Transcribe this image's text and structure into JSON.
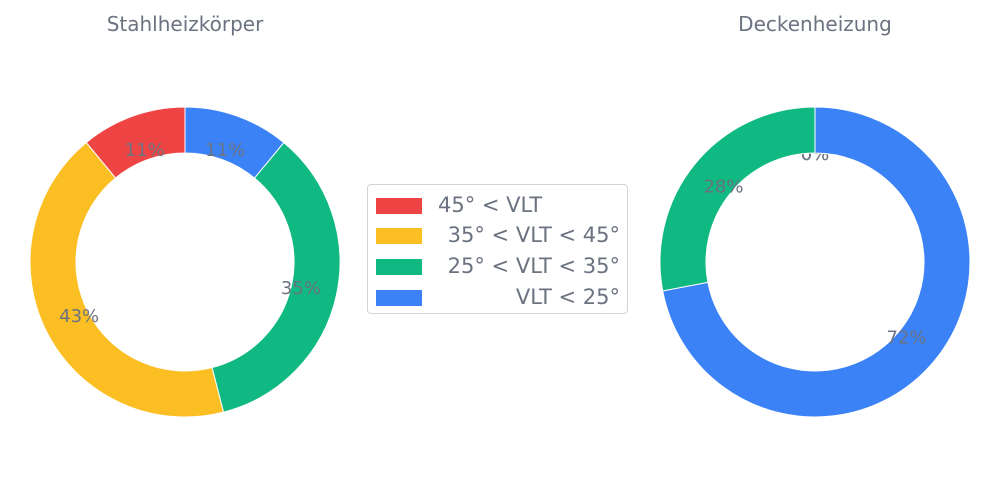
{
  "chart_data": [
    {
      "type": "pie",
      "title": "Stahlheizkörper",
      "categories": [
        "45° < VLT",
        "35° < VLT < 45°",
        "25° < VLT < 35°",
        "VLT < 25°"
      ],
      "values": [
        11,
        43,
        35,
        11
      ],
      "labels": [
        "11%",
        "43%",
        "35%",
        "11%"
      ],
      "hole": true
    },
    {
      "type": "pie",
      "title": "Deckenheizung",
      "categories": [
        "45° < VLT",
        "35° < VLT < 45°",
        "25° < VLT < 35°",
        "VLT < 25°"
      ],
      "values": [
        0,
        0,
        28,
        72
      ],
      "labels": [
        "0%",
        "0%",
        "28%",
        "72%"
      ],
      "hole": true
    }
  ],
  "legend": {
    "placement": "center",
    "items": [
      {
        "label": "45° < VLT",
        "color": "#ef4444"
      },
      {
        "label": "35° < VLT < 45°",
        "color": "#fbbf24"
      },
      {
        "label": "25° < VLT < 35°",
        "color": "#10b981"
      },
      {
        "label": "VLT < 25°",
        "color": "#3b82f6"
      }
    ]
  },
  "colors": [
    "#ef4444",
    "#fbbf24",
    "#10b981",
    "#3b82f6"
  ]
}
